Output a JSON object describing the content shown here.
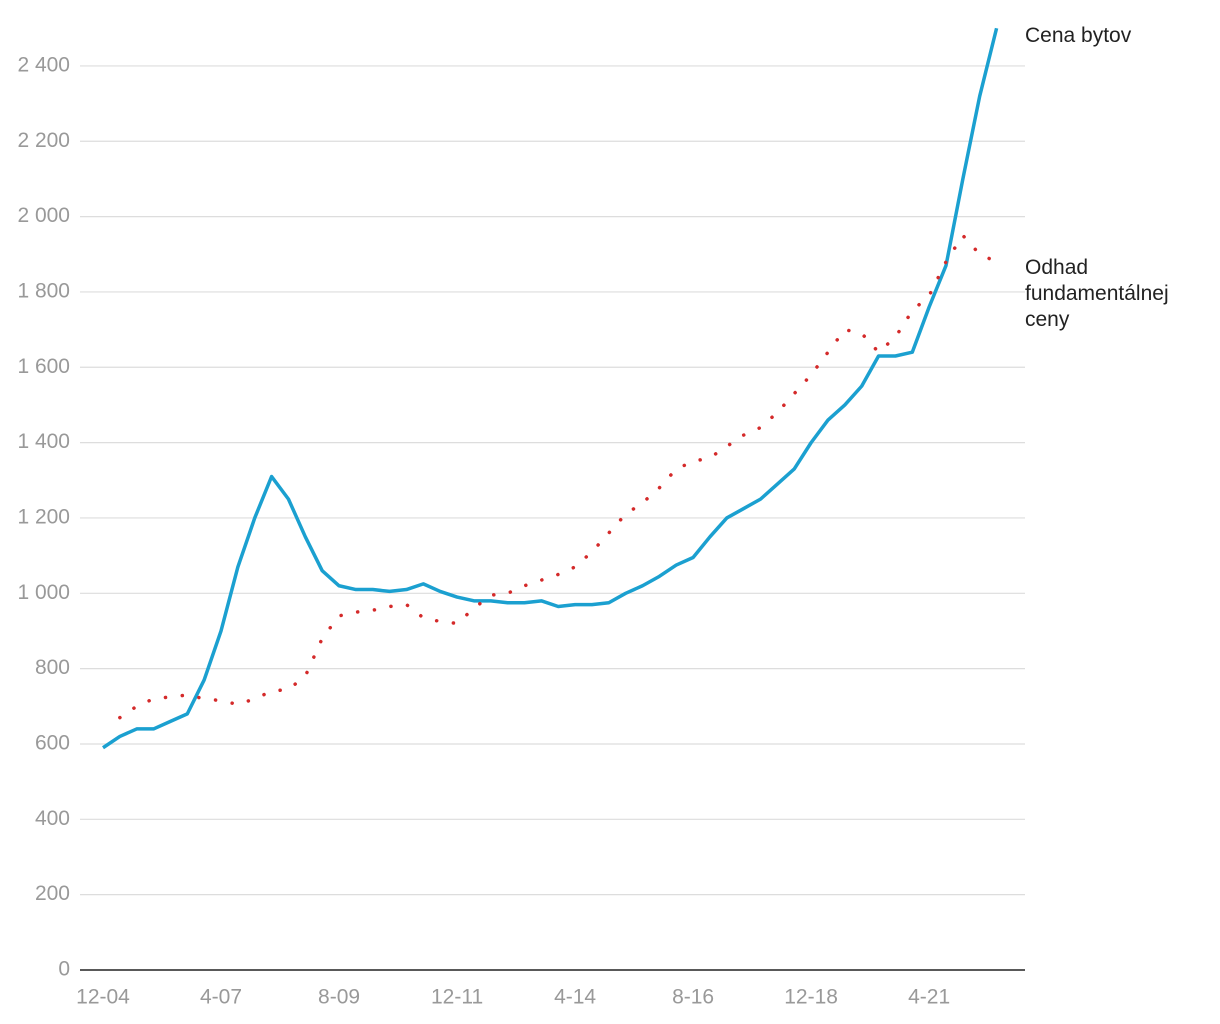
{
  "chart_data": {
    "type": "line",
    "categories": [
      "12-04",
      null,
      null,
      null,
      null,
      null,
      null,
      "4-07",
      null,
      null,
      null,
      null,
      null,
      null,
      "8-09",
      null,
      null,
      null,
      null,
      null,
      null,
      "12-11",
      null,
      null,
      null,
      null,
      null,
      null,
      "4-14",
      null,
      null,
      null,
      null,
      null,
      null,
      "8-16",
      null,
      null,
      null,
      null,
      null,
      null,
      "12-18",
      null,
      null,
      null,
      null,
      null,
      null,
      "4-21",
      null,
      null,
      null,
      null
    ],
    "series": [
      {
        "name": "Cena bytov",
        "color": "#1ba0d0",
        "style": "solid",
        "values": [
          590,
          620,
          640,
          640,
          660,
          680,
          770,
          900,
          1070,
          1200,
          1310,
          1250,
          1150,
          1060,
          1020,
          1010,
          1010,
          1005,
          1010,
          1025,
          1005,
          990,
          980,
          980,
          975,
          975,
          980,
          965,
          970,
          970,
          975,
          1000,
          1020,
          1045,
          1075,
          1095,
          1150,
          1200,
          1225,
          1250,
          1290,
          1330,
          1400,
          1460,
          1500,
          1550,
          1630,
          1630,
          1640,
          1760,
          1870,
          2100,
          2320,
          2500
        ]
      },
      {
        "name": "Odhad fundamentálnej ceny",
        "color": "#d42a2a",
        "style": "dotted",
        "values": [
          null,
          670,
          700,
          720,
          725,
          730,
          720,
          715,
          705,
          720,
          740,
          745,
          780,
          880,
          940,
          950,
          955,
          965,
          970,
          935,
          925,
          920,
          960,
          995,
          1000,
          1020,
          1035,
          1050,
          1070,
          1110,
          1160,
          1210,
          1240,
          1280,
          1330,
          1350,
          1360,
          1390,
          1420,
          1440,
          1480,
          1530,
          1580,
          1640,
          1700,
          1690,
          1640,
          1680,
          1750,
          1790,
          1880,
          1950,
          1900,
          1880
        ]
      }
    ],
    "ylim": [
      0,
      2575
    ],
    "yticks": [
      0,
      200,
      400,
      600,
      800,
      {
        "value": 1000,
        "label": "1 000"
      },
      {
        "value": 1200,
        "label": "1 200"
      },
      {
        "value": 1400,
        "label": "1 400"
      },
      {
        "value": 1600,
        "label": "1 600"
      },
      {
        "value": 1800,
        "label": "1 800"
      },
      {
        "value": 2000,
        "label": "2 000"
      },
      {
        "value": 2200,
        "label": "2 200"
      },
      {
        "value": 2400,
        "label": "2 400"
      }
    ],
    "grid": true
  }
}
